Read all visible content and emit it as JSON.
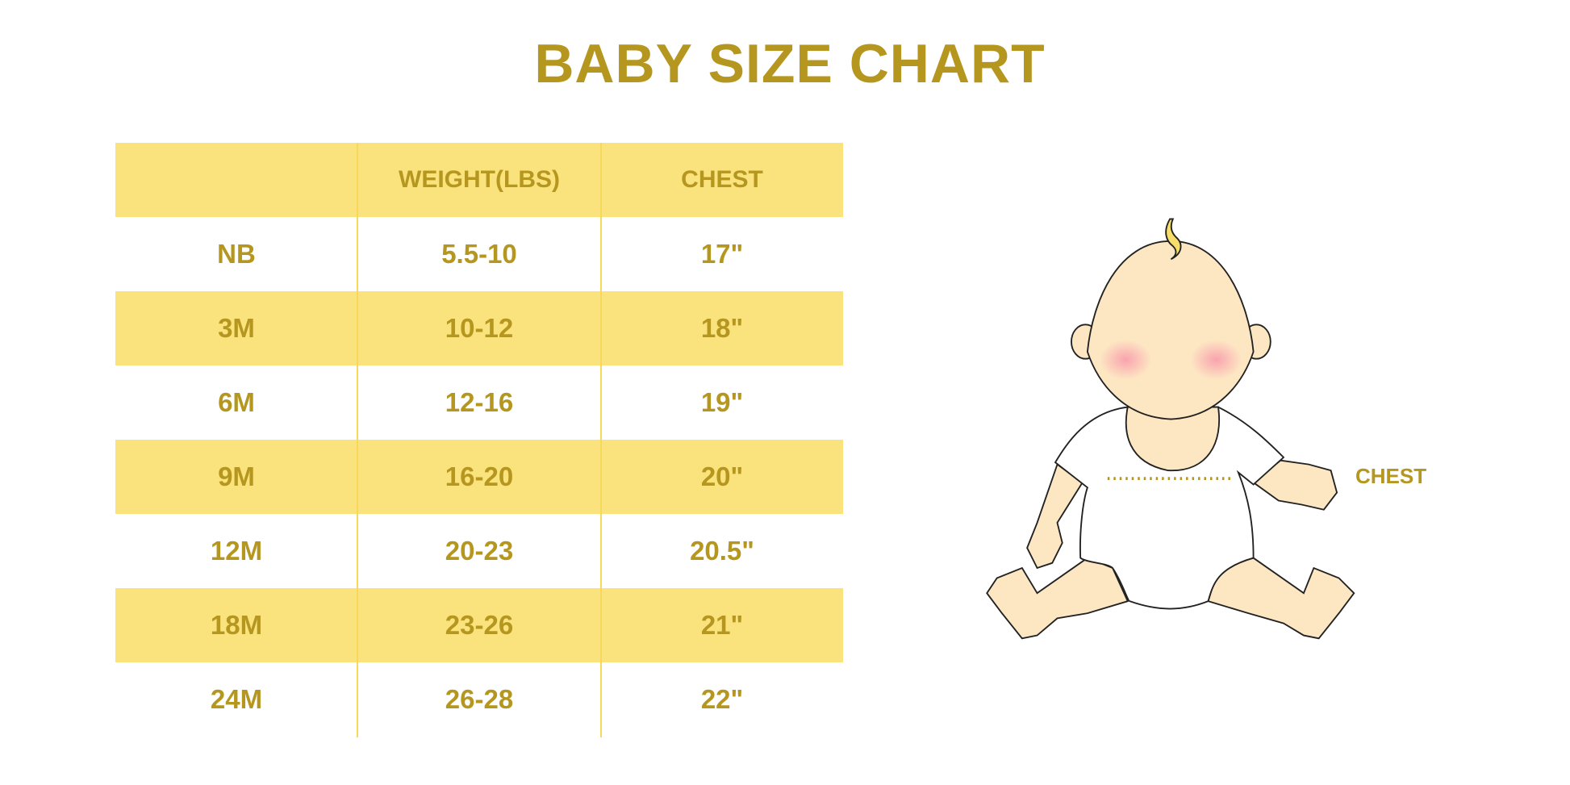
{
  "title": "BABY SIZE CHART",
  "table": {
    "headers": [
      "",
      "WEIGHT(LBS)",
      "CHEST"
    ],
    "rows": [
      [
        "NB",
        "5.5-10",
        "17\""
      ],
      [
        "3M",
        "10-12",
        "18\""
      ],
      [
        "6M",
        "12-16",
        "19\""
      ],
      [
        "9M",
        "16-20",
        "20\""
      ],
      [
        "12M",
        "20-23",
        "20.5\""
      ],
      [
        "18M",
        "23-26",
        "21\""
      ],
      [
        "24M",
        "26-28",
        "22\""
      ]
    ]
  },
  "illustration": {
    "chest_label": "CHEST"
  },
  "colors": {
    "text": "#B5961F",
    "stripe": "#FAE37C",
    "skin": "#FDE7C3"
  }
}
